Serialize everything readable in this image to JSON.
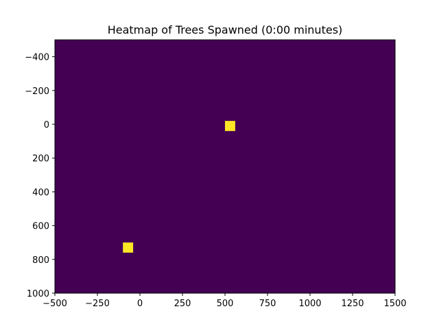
{
  "chart_data": {
    "type": "heatmap",
    "title": "Heatmap of Trees Spawned (0:00 minutes)",
    "xlabel": "",
    "ylabel": "",
    "xlim": [
      -500,
      1500
    ],
    "ylim": [
      1000,
      -500
    ],
    "y_inverted": true,
    "grid": false,
    "colormap": "viridis",
    "background_color": "#440154",
    "cell_color": "#fde725",
    "xticks": [
      -500,
      -250,
      0,
      250,
      500,
      750,
      1000,
      1250,
      1500
    ],
    "xtick_labels": [
      "−500",
      "−250",
      "0",
      "250",
      "500",
      "750",
      "1000",
      "1250",
      "1500"
    ],
    "yticks": [
      -400,
      -200,
      0,
      200,
      400,
      600,
      800,
      1000
    ],
    "ytick_labels": [
      "−400",
      "−200",
      "0",
      "200",
      "400",
      "600",
      "800",
      "1000"
    ],
    "cells": [
      {
        "x": [
          500,
          560
        ],
        "y": [
          -20,
          40
        ],
        "value": 1
      },
      {
        "x": [
          -100,
          -40
        ],
        "y": [
          700,
          760
        ],
        "value": 1
      }
    ]
  }
}
